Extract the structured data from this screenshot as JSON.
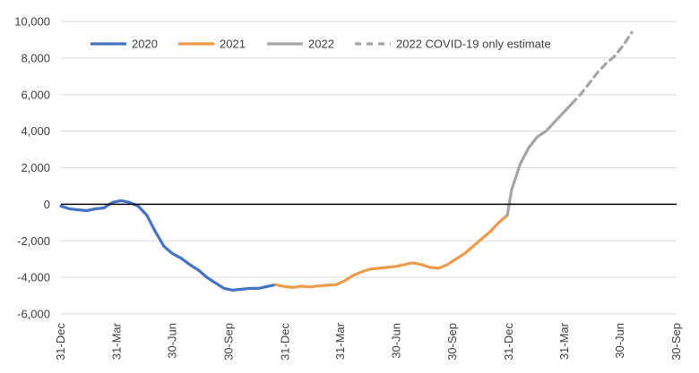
{
  "chart_data": {
    "type": "line",
    "title": "",
    "xlabel": "",
    "ylabel": "",
    "ylim": [
      -6000,
      10000
    ],
    "yticks": [
      -6000,
      -4000,
      -2000,
      0,
      2000,
      4000,
      6000,
      8000,
      10000
    ],
    "ytick_labels": [
      "-6,000",
      "-4,000",
      "-2,000",
      "0",
      "2,000",
      "4,000",
      "6,000",
      "8,000",
      "10,000"
    ],
    "xticks": [
      "2019-12-31",
      "2020-03-31",
      "2020-06-30",
      "2020-09-30",
      "2020-12-31",
      "2021-03-31",
      "2021-06-30",
      "2021-09-30",
      "2021-12-31",
      "2022-03-31",
      "2022-06-30",
      "2022-09-30"
    ],
    "xtick_labels": [
      "31-Dec",
      "31-Mar",
      "30-Jun",
      "30-Sep",
      "31-Dec",
      "31-Mar",
      "30-Jun",
      "30-Sep",
      "31-Dec",
      "31-Mar",
      "30-Jun",
      "30-Sep"
    ],
    "grid": "horizontal",
    "zero_line": true,
    "legend_position": "top",
    "series": [
      {
        "name": "2020",
        "color": "#4472c4",
        "dash": "solid",
        "points": [
          [
            "2019-12-31",
            -100
          ],
          [
            "2020-01-14",
            -250
          ],
          [
            "2020-01-28",
            -300
          ],
          [
            "2020-02-11",
            -350
          ],
          [
            "2020-02-25",
            -250
          ],
          [
            "2020-03-10",
            -200
          ],
          [
            "2020-03-24",
            100
          ],
          [
            "2020-04-07",
            200
          ],
          [
            "2020-04-21",
            100
          ],
          [
            "2020-05-05",
            -100
          ],
          [
            "2020-05-19",
            -600
          ],
          [
            "2020-06-02",
            -1500
          ],
          [
            "2020-06-16",
            -2300
          ],
          [
            "2020-06-30",
            -2700
          ],
          [
            "2020-07-14",
            -2950
          ],
          [
            "2020-07-28",
            -3300
          ],
          [
            "2020-08-11",
            -3600
          ],
          [
            "2020-08-25",
            -4000
          ],
          [
            "2020-09-08",
            -4300
          ],
          [
            "2020-09-22",
            -4600
          ],
          [
            "2020-10-06",
            -4700
          ],
          [
            "2020-10-20",
            -4650
          ],
          [
            "2020-11-03",
            -4600
          ],
          [
            "2020-11-17",
            -4600
          ],
          [
            "2020-12-01",
            -4500
          ],
          [
            "2020-12-15",
            -4400
          ]
        ]
      },
      {
        "name": "2021",
        "color": "#ed9b4a",
        "dash": "solid",
        "points": [
          [
            "2020-12-15",
            -4400
          ],
          [
            "2020-12-29",
            -4500
          ],
          [
            "2021-01-12",
            -4550
          ],
          [
            "2021-01-26",
            -4480
          ],
          [
            "2021-02-09",
            -4520
          ],
          [
            "2021-02-23",
            -4470
          ],
          [
            "2021-03-09",
            -4430
          ],
          [
            "2021-03-23",
            -4400
          ],
          [
            "2021-04-06",
            -4200
          ],
          [
            "2021-04-20",
            -3900
          ],
          [
            "2021-05-04",
            -3700
          ],
          [
            "2021-05-18",
            -3550
          ],
          [
            "2021-06-01",
            -3500
          ],
          [
            "2021-06-15",
            -3450
          ],
          [
            "2021-06-29",
            -3400
          ],
          [
            "2021-07-13",
            -3300
          ],
          [
            "2021-07-27",
            -3200
          ],
          [
            "2021-08-10",
            -3300
          ],
          [
            "2021-08-24",
            -3450
          ],
          [
            "2021-09-07",
            -3500
          ],
          [
            "2021-09-21",
            -3300
          ],
          [
            "2021-10-05",
            -3000
          ],
          [
            "2021-10-19",
            -2700
          ],
          [
            "2021-11-02",
            -2300
          ],
          [
            "2021-11-16",
            -1900
          ],
          [
            "2021-11-30",
            -1500
          ],
          [
            "2021-12-14",
            -1000
          ],
          [
            "2021-12-28",
            -600
          ]
        ]
      },
      {
        "name": "2022",
        "color": "#a5a5a5",
        "dash": "solid",
        "points": [
          [
            "2021-12-28",
            -600
          ],
          [
            "2022-01-04",
            800
          ],
          [
            "2022-01-18",
            2200
          ],
          [
            "2022-02-01",
            3100
          ],
          [
            "2022-02-15",
            3700
          ],
          [
            "2022-03-01",
            4000
          ],
          [
            "2022-03-15",
            4500
          ],
          [
            "2022-03-29",
            5000
          ],
          [
            "2022-04-12",
            5500
          ]
        ]
      },
      {
        "name": "2022 COVID-19 only estimate",
        "color": "#a5a5a5",
        "dash": "dashed",
        "points": [
          [
            "2022-04-12",
            5500
          ],
          [
            "2022-04-26",
            6000
          ],
          [
            "2022-05-10",
            6600
          ],
          [
            "2022-05-24",
            7200
          ],
          [
            "2022-06-07",
            7700
          ],
          [
            "2022-06-21",
            8100
          ],
          [
            "2022-07-05",
            8700
          ],
          [
            "2022-07-19",
            9400
          ]
        ]
      }
    ]
  }
}
